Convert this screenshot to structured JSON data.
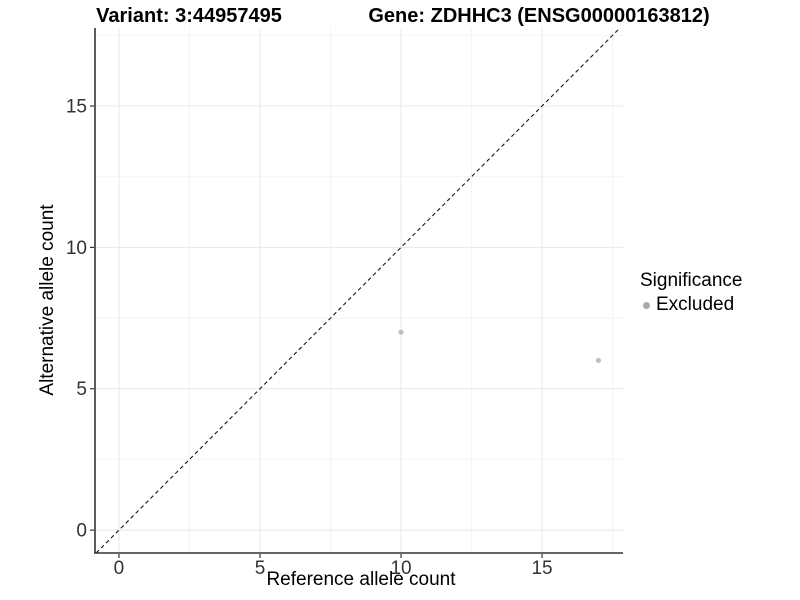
{
  "header": {
    "variant_title": "Variant: 3:44957495",
    "gene_title": "Gene: ZDHHC3 (ENSG00000163812)"
  },
  "legend": {
    "title": "Significance",
    "items": [
      {
        "label": "Excluded",
        "color": "#a9a9a9"
      }
    ]
  },
  "chart_data": {
    "type": "scatter",
    "xlabel": "Reference allele count",
    "ylabel": "Alternative allele count",
    "xlim": [
      -0.85,
      17.87
    ],
    "ylim": [
      -0.81,
      17.76
    ],
    "x_ticks": [
      0,
      5,
      10,
      15
    ],
    "y_ticks": [
      0,
      5,
      10,
      15
    ],
    "x_minor_ticks": [
      2.5,
      7.5,
      12.5,
      17.5
    ],
    "y_minor_ticks": [
      2.5,
      7.5,
      12.5,
      17.5
    ],
    "grid": "major+minor",
    "legend_position": "right",
    "identity_line": {
      "type": "abline",
      "slope": 1,
      "intercept": 0,
      "style": "dashed",
      "color": "#1a1a1a"
    },
    "series": [
      {
        "name": "Excluded",
        "color": "#bfbfbf",
        "point_radius": 2.6,
        "points": [
          {
            "x": 10,
            "y": 7
          },
          {
            "x": 17,
            "y": 6
          }
        ]
      }
    ],
    "colors": {
      "grid_major": "#e8e8e8",
      "grid_minor": "#f4f4f4",
      "axis_line": "#333333",
      "tick_text": "#333333"
    }
  }
}
